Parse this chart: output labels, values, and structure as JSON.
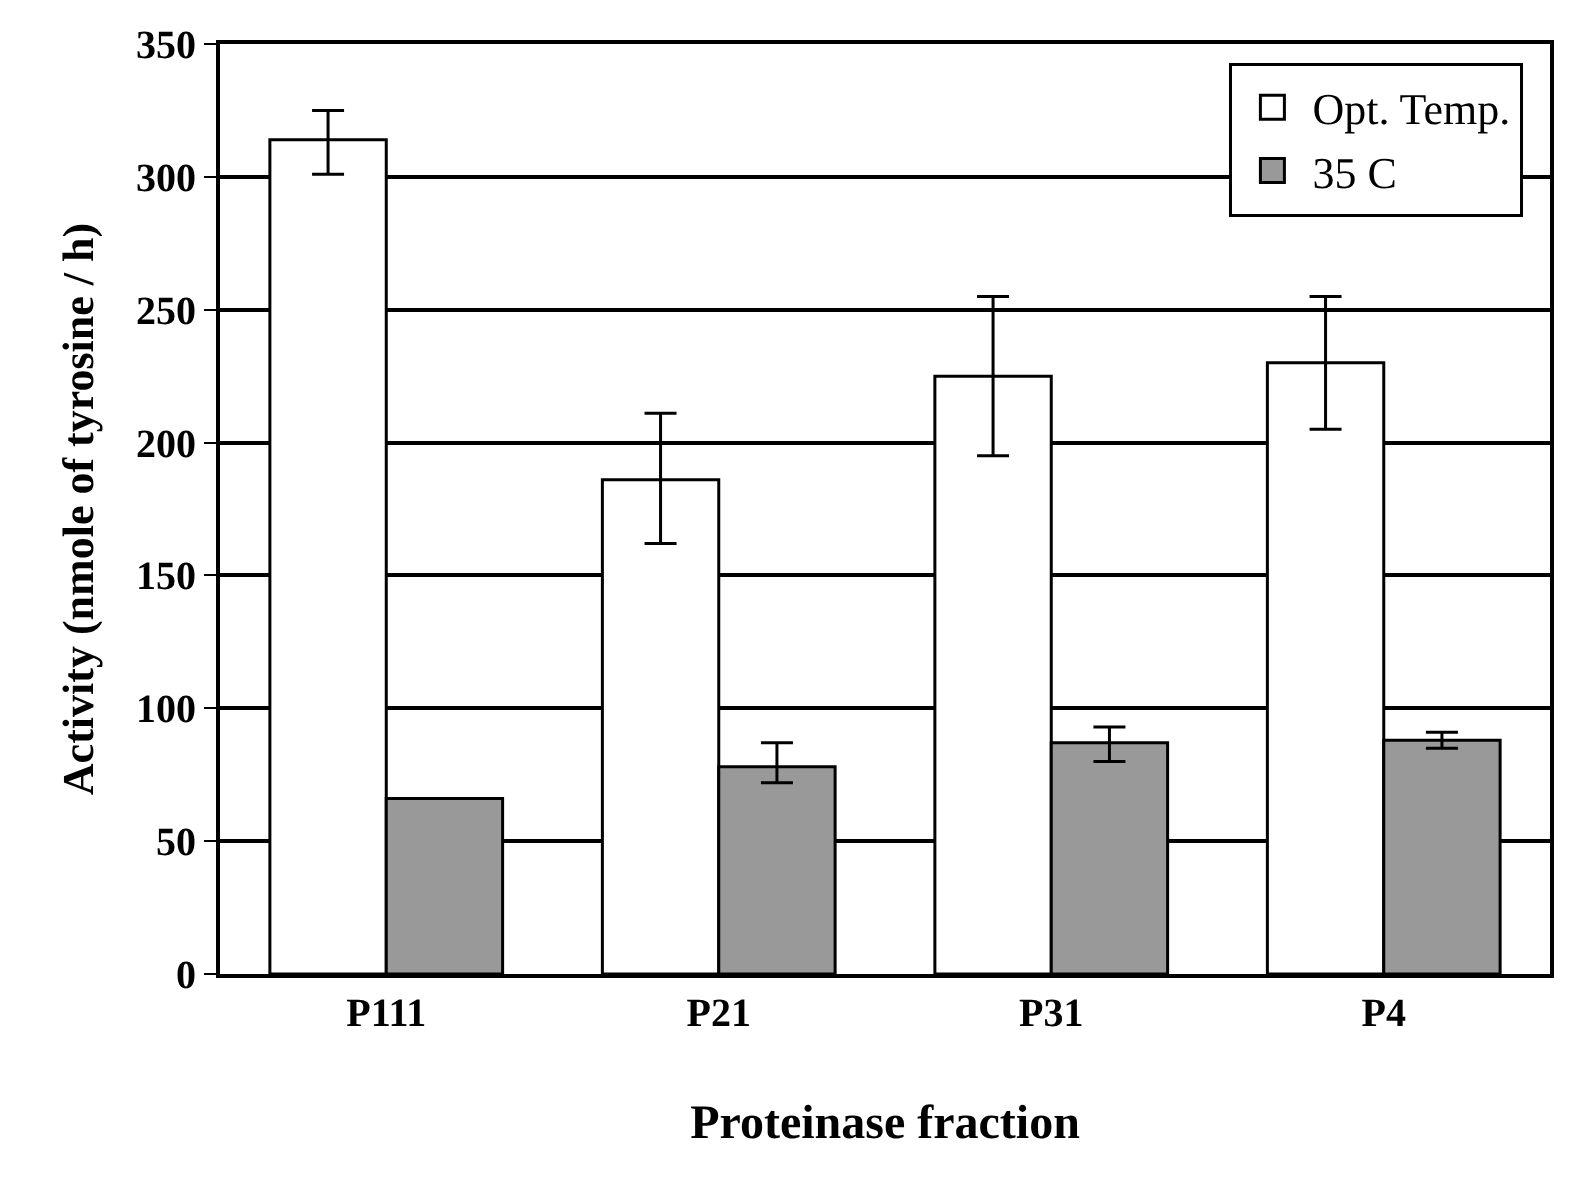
{
  "chart_data": {
    "type": "bar",
    "xlabel": "Proteinase fraction",
    "ylabel": "Activity (nmole of tyrosine / h)",
    "categories": [
      "P111",
      "P21",
      "P31",
      "P4"
    ],
    "series": [
      {
        "name": "Opt. Temp.",
        "color": "#ffffff",
        "values": [
          314,
          186,
          225,
          230
        ],
        "errors": [
          [
            301,
            325
          ],
          [
            162,
            211
          ],
          [
            195,
            255
          ],
          [
            205,
            255
          ]
        ]
      },
      {
        "name": "35 C",
        "color": "#999999",
        "values": [
          66,
          78,
          87,
          88
        ],
        "errors": [
          null,
          [
            72,
            87
          ],
          [
            80,
            93
          ],
          [
            85,
            91
          ]
        ]
      }
    ],
    "ylim": [
      0,
      350
    ],
    "yticks": [
      0,
      50,
      100,
      150,
      200,
      250,
      300,
      350
    ],
    "grid": "y",
    "legend": "top right"
  }
}
